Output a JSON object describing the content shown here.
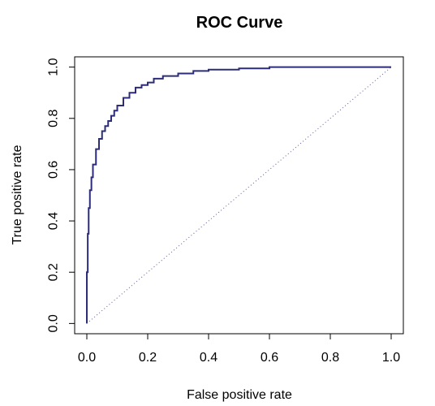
{
  "chart_data": {
    "type": "line",
    "title": "ROC Curve",
    "xlabel": "False positive rate",
    "ylabel": "True positive rate",
    "xlim": [
      -0.04,
      1.04
    ],
    "ylim": [
      -0.04,
      1.04
    ],
    "xticks": [
      0.0,
      0.2,
      0.4,
      0.6,
      0.8,
      1.0
    ],
    "yticks": [
      0.0,
      0.2,
      0.4,
      0.6,
      0.8,
      1.0
    ],
    "xtick_labels": [
      "0.0",
      "0.2",
      "0.4",
      "0.6",
      "0.8",
      "1.0"
    ],
    "ytick_labels": [
      "0.0",
      "0.2",
      "0.4",
      "0.6",
      "0.8",
      "1.0"
    ],
    "grid": false,
    "series": [
      {
        "style": "solid",
        "color": "#2c2c7a",
        "x": [
          0.0,
          0.0,
          0.003,
          0.006,
          0.01,
          0.015,
          0.02,
          0.03,
          0.04,
          0.05,
          0.06,
          0.07,
          0.08,
          0.09,
          0.1,
          0.12,
          0.14,
          0.16,
          0.18,
          0.2,
          0.22,
          0.25,
          0.3,
          0.35,
          0.4,
          0.5,
          0.6,
          0.8,
          1.0
        ],
        "y": [
          0.0,
          0.2,
          0.35,
          0.45,
          0.52,
          0.57,
          0.62,
          0.68,
          0.72,
          0.75,
          0.77,
          0.79,
          0.81,
          0.83,
          0.85,
          0.88,
          0.9,
          0.92,
          0.93,
          0.94,
          0.955,
          0.965,
          0.975,
          0.985,
          0.99,
          0.995,
          1.0,
          1.0,
          1.0
        ]
      },
      {
        "style": "dotted",
        "color": "#5c5c9c",
        "x": [
          0.0,
          1.0
        ],
        "y": [
          0.0,
          1.0
        ]
      }
    ]
  }
}
